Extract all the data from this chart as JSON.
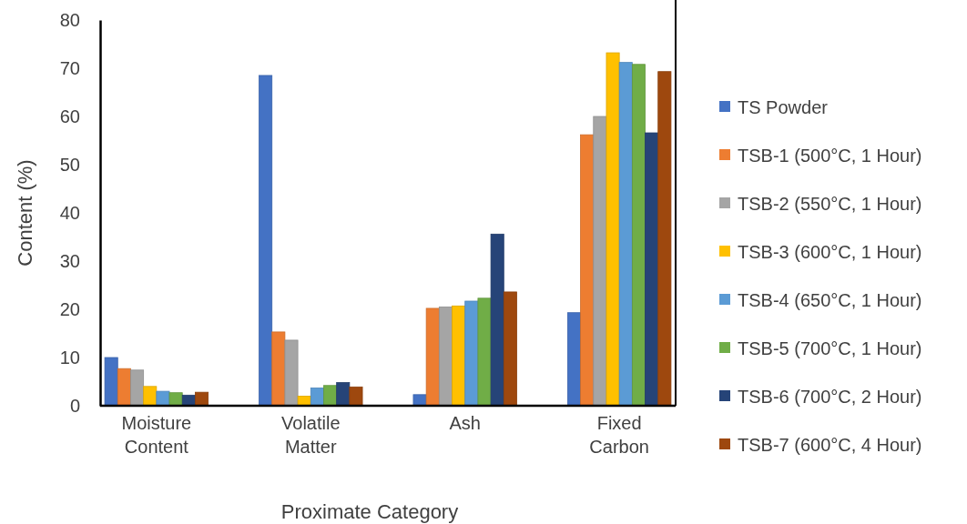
{
  "chart_data": {
    "type": "bar",
    "xlabel": "Proximate Category",
    "ylabel": "Content (%)",
    "categories": [
      "Moisture Content",
      "Volatile Matter",
      "Ash",
      "Fixed Carbon"
    ],
    "ylim": [
      0,
      80
    ],
    "yticks": [
      0,
      10,
      20,
      30,
      40,
      50,
      60,
      70,
      80
    ],
    "grid": false,
    "legend": "right",
    "series": [
      {
        "name": "TS Powder",
        "color": "#4472c4",
        "values": [
          10,
          68.5,
          2.3,
          19.3
        ]
      },
      {
        "name": "TSB-1 (500°C, 1 Hour)",
        "color": "#ed7d31",
        "values": [
          7.7,
          15.3,
          20.2,
          56.2
        ]
      },
      {
        "name": "TSB-2 (550°C, 1 Hour)",
        "color": "#a5a5a5",
        "values": [
          7.4,
          13.6,
          20.5,
          60
        ]
      },
      {
        "name": "TSB-3 (600°C, 1 Hour)",
        "color": "#ffc000",
        "values": [
          4,
          2,
          20.7,
          73.2
        ]
      },
      {
        "name": "TSB-4 (650°C, 1 Hour)",
        "color": "#5b9bd5",
        "values": [
          3,
          3.7,
          21.7,
          71.2
        ]
      },
      {
        "name": "TSB-5 (700°C, 1 Hour)",
        "color": "#70ad47",
        "values": [
          2.7,
          4.2,
          22.3,
          70.8
        ]
      },
      {
        "name": "TSB-6 (700°C, 2 Hour)",
        "color": "#264478",
        "values": [
          2.2,
          4.8,
          35.6,
          56.6
        ]
      },
      {
        "name": "TSB-7 (600°C, 4 Hour)",
        "color": "#9e480e",
        "values": [
          2.8,
          3.9,
          23.6,
          69.3
        ]
      }
    ]
  }
}
